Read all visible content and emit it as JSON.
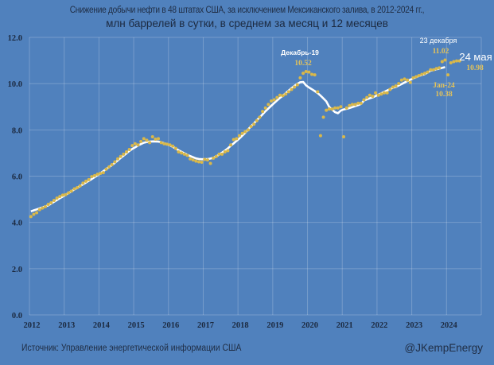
{
  "chart_data": {
    "type": "line",
    "title": "Снижение добычи нефти в 48 штатах США, за исключением Мексиканского залива, в 2012-2024 гг.,",
    "subtitle": "млн баррелей в сутки, в среднем за месяц и 12 месяцев",
    "xlabel": "",
    "ylabel": "",
    "ylim": [
      0,
      12
    ],
    "xlim": [
      2012,
      2025
    ],
    "grid": true,
    "y_ticks": [
      "0.0",
      "2.0",
      "4.0",
      "6.0",
      "8.0",
      "10.0",
      "12.0"
    ],
    "x_ticks": [
      "2012",
      "2013",
      "2014",
      "2015",
      "2016",
      "2017",
      "2018",
      "2019",
      "2020",
      "2021",
      "2022",
      "2023",
      "2024"
    ],
    "start": "2012-01",
    "series": [
      {
        "kind": "monthly-dots",
        "color": "#d9b84a",
        "values": [
          4.25,
          4.35,
          4.42,
          4.55,
          4.62,
          4.68,
          4.78,
          4.85,
          4.95,
          5.05,
          5.12,
          5.18,
          5.2,
          5.28,
          5.35,
          5.45,
          5.5,
          5.58,
          5.7,
          5.78,
          5.85,
          5.98,
          6.02,
          6.08,
          6.12,
          6.15,
          6.3,
          6.4,
          6.5,
          6.62,
          6.75,
          6.85,
          6.95,
          7.05,
          7.15,
          7.32,
          7.4,
          7.35,
          7.5,
          7.62,
          7.55,
          7.45,
          7.7,
          7.6,
          7.62,
          7.45,
          7.4,
          7.38,
          7.35,
          7.3,
          7.2,
          7.05,
          7.0,
          6.95,
          6.9,
          6.75,
          6.7,
          6.65,
          6.62,
          6.6,
          6.72,
          6.7,
          6.55,
          6.78,
          6.85,
          6.95,
          6.95,
          7.05,
          7.1,
          7.35,
          7.58,
          7.62,
          7.75,
          7.85,
          7.92,
          8.0,
          8.15,
          8.25,
          8.4,
          8.55,
          8.8,
          8.95,
          9.1,
          9.25,
          9.3,
          9.4,
          9.5,
          9.48,
          9.55,
          9.65,
          9.75,
          9.85,
          9.95,
          10.25,
          10.45,
          10.52,
          10.5,
          10.4,
          10.38,
          9.65,
          7.75,
          8.55,
          8.85,
          8.9,
          8.9,
          8.95,
          8.95,
          9.0,
          7.7,
          8.95,
          9.05,
          9.1,
          9.1,
          9.15,
          9.15,
          9.3,
          9.4,
          9.5,
          9.45,
          9.6,
          9.5,
          9.55,
          9.6,
          9.6,
          9.75,
          9.85,
          9.9,
          10.0,
          10.15,
          10.2,
          10.15,
          10.05,
          10.25,
          10.3,
          10.35,
          10.4,
          10.45,
          10.5,
          10.6,
          10.6,
          10.65,
          10.68,
          10.95,
          11.02,
          10.38,
          10.9,
          10.95,
          10.98,
          10.98
        ]
      },
      {
        "kind": "12-month-average-line",
        "color": "#ffffff"
      }
    ],
    "annotations": [
      {
        "label": "Декабрь-19",
        "value": "10.52"
      },
      {
        "label": "23 декабря",
        "value": "11.02"
      },
      {
        "label": "24 мая",
        "value": "10.98"
      },
      {
        "label": "Jan-24",
        "value": "10.38"
      }
    ]
  },
  "footer": {
    "source": "Источник: Управление энергетической информации США",
    "handle": "@JKempEnergy"
  }
}
